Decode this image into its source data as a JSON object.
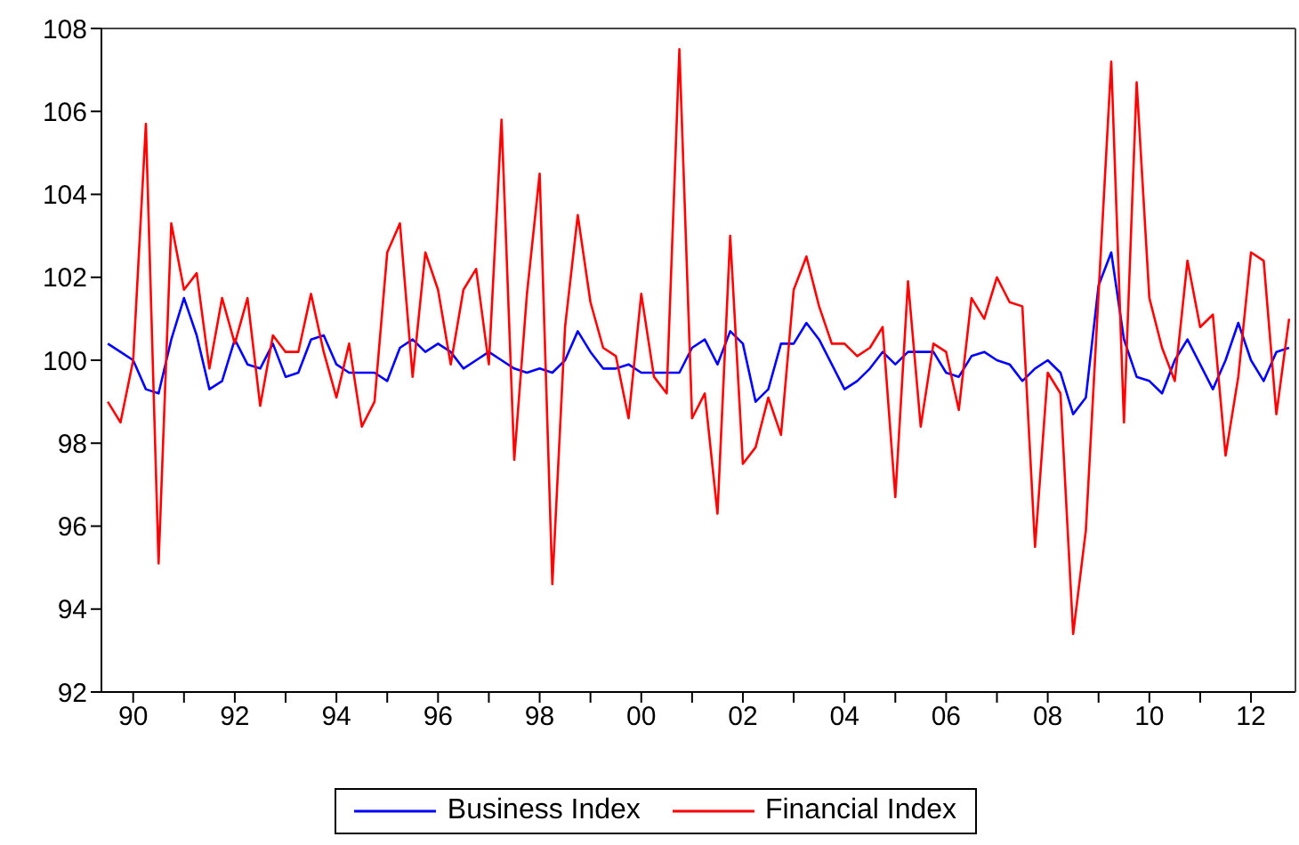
{
  "chart_data": {
    "type": "line",
    "x": [
      1989.5,
      1989.75,
      1990,
      1990.25,
      1990.5,
      1990.75,
      1991,
      1991.25,
      1991.5,
      1991.75,
      1992,
      1992.25,
      1992.5,
      1992.75,
      1993,
      1993.25,
      1993.5,
      1993.75,
      1994,
      1994.25,
      1994.5,
      1994.75,
      1995,
      1995.25,
      1995.5,
      1995.75,
      1996,
      1996.25,
      1996.5,
      1996.75,
      1997,
      1997.25,
      1997.5,
      1997.75,
      1998,
      1998.25,
      1998.5,
      1998.75,
      1999,
      1999.25,
      1999.5,
      1999.75,
      2000,
      2000.25,
      2000.5,
      2000.75,
      2001,
      2001.25,
      2001.5,
      2001.75,
      2002,
      2002.25,
      2002.5,
      2002.75,
      2003,
      2003.25,
      2003.5,
      2003.75,
      2004,
      2004.25,
      2004.5,
      2004.75,
      2005,
      2005.25,
      2005.5,
      2005.75,
      2006,
      2006.25,
      2006.5,
      2006.75,
      2007,
      2007.25,
      2007.5,
      2007.75,
      2008,
      2008.25,
      2008.5,
      2008.75,
      2009,
      2009.25,
      2009.5,
      2009.75,
      2010,
      2010.25,
      2010.5,
      2010.75,
      2011,
      2011.25,
      2011.5,
      2011.75,
      2012,
      2012.25,
      2012.5,
      2012.75
    ],
    "series": [
      {
        "name": "Business Index",
        "color": "#0000ff",
        "values": [
          100.4,
          100.2,
          100.0,
          99.3,
          99.2,
          100.5,
          101.5,
          100.6,
          99.3,
          99.5,
          100.5,
          99.9,
          99.8,
          100.4,
          99.6,
          99.7,
          100.5,
          100.6,
          99.9,
          99.7,
          99.7,
          99.7,
          99.5,
          100.3,
          100.5,
          100.2,
          100.4,
          100.2,
          99.8,
          100.0,
          100.2,
          100.0,
          99.8,
          99.7,
          99.8,
          99.7,
          100.0,
          100.7,
          100.2,
          99.8,
          99.8,
          99.9,
          99.7,
          99.7,
          99.7,
          99.7,
          100.3,
          100.5,
          99.9,
          100.7,
          100.4,
          99.0,
          99.3,
          100.4,
          100.4,
          100.9,
          100.5,
          99.9,
          99.3,
          99.5,
          99.8,
          100.2,
          99.9,
          100.2,
          100.2,
          100.2,
          99.7,
          99.6,
          100.1,
          100.2,
          100.0,
          99.9,
          99.5,
          99.8,
          100.0,
          99.7,
          98.7,
          99.1,
          101.8,
          102.6,
          100.5,
          99.6,
          99.5,
          99.2,
          100.0,
          100.5,
          99.9,
          99.3,
          100.0,
          100.9,
          100.0,
          99.5,
          100.2,
          100.3
        ]
      },
      {
        "name": "Financial Index",
        "color": "#ff0000",
        "values": [
          99.0,
          98.5,
          100.0,
          105.7,
          95.1,
          103.3,
          101.7,
          102.1,
          99.8,
          101.5,
          100.4,
          101.5,
          98.9,
          100.6,
          100.2,
          100.2,
          101.6,
          100.2,
          99.1,
          100.4,
          98.4,
          99.0,
          102.6,
          103.3,
          99.6,
          102.6,
          101.7,
          99.9,
          101.7,
          102.2,
          99.9,
          105.8,
          97.6,
          101.6,
          104.5,
          94.6,
          100.8,
          103.5,
          101.4,
          100.3,
          100.1,
          98.6,
          101.6,
          99.6,
          99.2,
          107.5,
          98.6,
          99.2,
          96.3,
          103.0,
          97.5,
          97.9,
          99.1,
          98.2,
          101.7,
          102.5,
          101.3,
          100.4,
          100.4,
          100.1,
          100.3,
          100.8,
          96.7,
          101.9,
          98.4,
          100.4,
          100.2,
          98.8,
          101.5,
          101.0,
          102.0,
          101.4,
          101.3,
          95.5,
          99.7,
          99.2,
          93.4,
          95.9,
          101.6,
          107.2,
          98.5,
          106.7,
          101.5,
          100.3,
          99.5,
          102.4,
          100.8,
          101.1,
          97.7,
          99.6,
          102.6,
          102.4,
          98.7,
          101.0
        ]
      }
    ],
    "xlim": [
      1989.375,
      2012.875
    ],
    "xticks": [
      {
        "value": 1990,
        "label": "90"
      },
      {
        "value": 1991,
        "label": null
      },
      {
        "value": 1992,
        "label": "92"
      },
      {
        "value": 1993,
        "label": null
      },
      {
        "value": 1994,
        "label": "94"
      },
      {
        "value": 1995,
        "label": null
      },
      {
        "value": 1996,
        "label": "96"
      },
      {
        "value": 1997,
        "label": null
      },
      {
        "value": 1998,
        "label": "98"
      },
      {
        "value": 1999,
        "label": null
      },
      {
        "value": 2000,
        "label": "00"
      },
      {
        "value": 2001,
        "label": null
      },
      {
        "value": 2002,
        "label": "02"
      },
      {
        "value": 2003,
        "label": null
      },
      {
        "value": 2004,
        "label": "04"
      },
      {
        "value": 2005,
        "label": null
      },
      {
        "value": 2006,
        "label": "06"
      },
      {
        "value": 2007,
        "label": null
      },
      {
        "value": 2008,
        "label": "08"
      },
      {
        "value": 2009,
        "label": null
      },
      {
        "value": 2010,
        "label": "10"
      },
      {
        "value": 2011,
        "label": null
      },
      {
        "value": 2012,
        "label": "12"
      }
    ],
    "ylim": [
      92,
      108
    ],
    "yticks": [
      92,
      94,
      96,
      98,
      100,
      102,
      104,
      106,
      108
    ],
    "legend": "bottom",
    "marker": "none",
    "line_style": "solid"
  }
}
